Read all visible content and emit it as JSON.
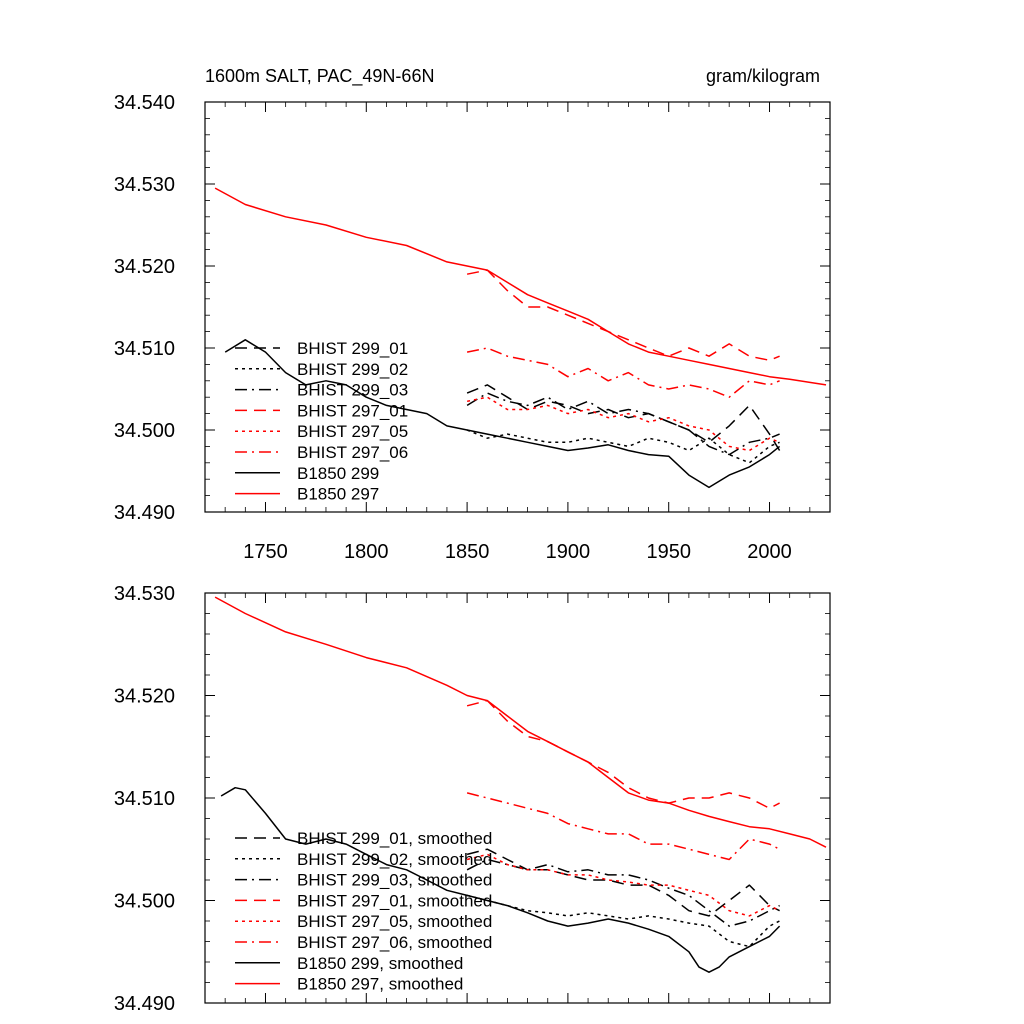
{
  "chart_data": [
    {
      "type": "line",
      "title_left": "1600m SALT, PAC_49N-66N",
      "title_right": "gram/kilogram",
      "xlim": [
        1720,
        2030
      ],
      "ylim": [
        34.49,
        34.54
      ],
      "y_ticks": [
        "34.490",
        "34.500",
        "34.510",
        "34.520",
        "34.530",
        "34.540"
      ],
      "x_ticks": [
        "1750",
        "1800",
        "1850",
        "1900",
        "1950",
        "2000"
      ],
      "grid": false,
      "legend_position": "lower-left",
      "series": [
        {
          "name": "BHIST 299_01",
          "color": "#000000",
          "dash": "dash",
          "x": [
            1850,
            1860,
            1870,
            1880,
            1890,
            1900,
            1910,
            1920,
            1930,
            1940,
            1950,
            1960,
            1970,
            1980,
            1990,
            2000,
            2005
          ],
          "y": [
            34.5045,
            34.5055,
            34.504,
            34.5025,
            34.5035,
            34.503,
            34.502,
            34.5025,
            34.5015,
            34.502,
            34.501,
            34.5,
            34.4985,
            34.5005,
            34.503,
            34.4995,
            34.4975
          ]
        },
        {
          "name": "BHIST 299_02",
          "color": "#000000",
          "dash": "dot",
          "x": [
            1850,
            1860,
            1870,
            1880,
            1890,
            1900,
            1910,
            1920,
            1930,
            1940,
            1950,
            1960,
            1970,
            1980,
            1990,
            2000,
            2005
          ],
          "y": [
            34.5,
            34.499,
            34.4995,
            34.499,
            34.4985,
            34.4985,
            34.499,
            34.4985,
            34.498,
            34.499,
            34.4985,
            34.4975,
            34.499,
            34.497,
            34.496,
            34.498,
            34.4985
          ]
        },
        {
          "name": "BHIST 299_03",
          "color": "#000000",
          "dash": "dashdot",
          "x": [
            1850,
            1860,
            1870,
            1880,
            1890,
            1900,
            1910,
            1920,
            1930,
            1940,
            1950,
            1960,
            1970,
            1980,
            1990,
            2000,
            2005
          ],
          "y": [
            34.503,
            34.5045,
            34.5035,
            34.503,
            34.504,
            34.5025,
            34.5035,
            34.502,
            34.5025,
            34.502,
            34.501,
            34.5,
            34.498,
            34.497,
            34.4985,
            34.499,
            34.4995
          ]
        },
        {
          "name": "BHIST 297_01",
          "color": "#ff0000",
          "dash": "dash",
          "x": [
            1850,
            1860,
            1870,
            1880,
            1890,
            1900,
            1910,
            1920,
            1930,
            1940,
            1950,
            1960,
            1970,
            1980,
            1990,
            2000,
            2005
          ],
          "y": [
            34.519,
            34.5195,
            34.517,
            34.515,
            34.515,
            34.514,
            34.513,
            34.512,
            34.511,
            34.51,
            34.509,
            34.51,
            34.509,
            34.5105,
            34.509,
            34.5085,
            34.509
          ]
        },
        {
          "name": "BHIST 297_05",
          "color": "#ff0000",
          "dash": "dot",
          "x": [
            1850,
            1860,
            1870,
            1880,
            1890,
            1900,
            1910,
            1920,
            1930,
            1940,
            1950,
            1960,
            1970,
            1980,
            1990,
            2000,
            2005
          ],
          "y": [
            34.5035,
            34.504,
            34.5025,
            34.5025,
            34.503,
            34.502,
            34.5025,
            34.5015,
            34.502,
            34.501,
            34.5015,
            34.5005,
            34.5,
            34.498,
            34.4975,
            34.499,
            34.4985
          ]
        },
        {
          "name": "BHIST 297_06",
          "color": "#ff0000",
          "dash": "dashdot",
          "x": [
            1850,
            1860,
            1870,
            1880,
            1890,
            1900,
            1910,
            1920,
            1930,
            1940,
            1950,
            1960,
            1970,
            1980,
            1990,
            2000,
            2005
          ],
          "y": [
            34.5095,
            34.51,
            34.509,
            34.5085,
            34.508,
            34.5065,
            34.5075,
            34.506,
            34.507,
            34.5055,
            34.505,
            34.5055,
            34.505,
            34.504,
            34.506,
            34.5055,
            34.506
          ]
        },
        {
          "name": "B1850 299",
          "color": "#000000",
          "dash": "solid",
          "x": [
            1730,
            1740,
            1750,
            1760,
            1770,
            1780,
            1790,
            1800,
            1810,
            1820,
            1830,
            1840,
            1850,
            1860,
            1870,
            1880,
            1890,
            1900,
            1910,
            1920,
            1930,
            1940,
            1950,
            1960,
            1970,
            1980,
            1990,
            2000,
            2005
          ],
          "y": [
            34.5095,
            34.511,
            34.5095,
            34.507,
            34.5055,
            34.506,
            34.5055,
            34.504,
            34.503,
            34.5025,
            34.502,
            34.5005,
            34.5,
            34.4995,
            34.499,
            34.4985,
            34.498,
            34.4975,
            34.4978,
            34.4982,
            34.4975,
            34.497,
            34.4968,
            34.4945,
            34.493,
            34.4945,
            34.4955,
            34.497,
            34.498
          ]
        },
        {
          "name": "B1850 297",
          "color": "#ff0000",
          "dash": "solid",
          "x": [
            1725,
            1740,
            1760,
            1780,
            1800,
            1820,
            1840,
            1850,
            1860,
            1870,
            1880,
            1890,
            1900,
            1910,
            1920,
            1930,
            1940,
            1950,
            1960,
            1970,
            1980,
            1990,
            2000,
            2010,
            2020,
            2028
          ],
          "y": [
            34.5295,
            34.5275,
            34.526,
            34.525,
            34.5235,
            34.5225,
            34.5205,
            34.52,
            34.5195,
            34.518,
            34.5165,
            34.5155,
            34.5145,
            34.5135,
            34.512,
            34.5105,
            34.5095,
            34.509,
            34.5085,
            34.508,
            34.5075,
            34.507,
            34.5065,
            34.5062,
            34.5058,
            34.5055
          ]
        }
      ]
    },
    {
      "type": "line",
      "xlim": [
        1720,
        2030
      ],
      "ylim": [
        34.49,
        34.53
      ],
      "y_ticks": [
        "34.490",
        "34.500",
        "34.510",
        "34.520",
        "34.530"
      ],
      "grid": false,
      "legend_position": "lower-left",
      "series": [
        {
          "name": "BHIST 299_01, smoothed",
          "color": "#000000",
          "dash": "dash",
          "x": [
            1850,
            1860,
            1870,
            1880,
            1890,
            1900,
            1910,
            1920,
            1930,
            1940,
            1950,
            1960,
            1970,
            1980,
            1990,
            2000,
            2005
          ],
          "y": [
            34.5045,
            34.505,
            34.504,
            34.503,
            34.503,
            34.5025,
            34.502,
            34.502,
            34.5015,
            34.5015,
            34.5005,
            34.499,
            34.4985,
            34.5,
            34.5015,
            34.4995,
            34.499
          ]
        },
        {
          "name": "BHIST 299_02, smoothed",
          "color": "#000000",
          "dash": "dot",
          "x": [
            1850,
            1860,
            1870,
            1880,
            1890,
            1900,
            1910,
            1920,
            1930,
            1940,
            1950,
            1960,
            1970,
            1980,
            1990,
            2000,
            2005
          ],
          "y": [
            34.5005,
            34.5,
            34.4995,
            34.499,
            34.4988,
            34.4985,
            34.4988,
            34.4985,
            34.4982,
            34.4985,
            34.4982,
            34.4978,
            34.4975,
            34.496,
            34.4955,
            34.4975,
            34.498
          ]
        },
        {
          "name": "BHIST 299_03, smoothed",
          "color": "#000000",
          "dash": "dashdot",
          "x": [
            1850,
            1860,
            1870,
            1880,
            1890,
            1900,
            1910,
            1920,
            1930,
            1940,
            1950,
            1960,
            1970,
            1980,
            1990,
            2000,
            2005
          ],
          "y": [
            34.503,
            34.504,
            34.5035,
            34.503,
            34.5035,
            34.5028,
            34.503,
            34.5025,
            34.5025,
            34.502,
            34.5012,
            34.5005,
            34.499,
            34.4975,
            34.498,
            34.499,
            34.4995
          ]
        },
        {
          "name": "BHIST 297_01, smoothed",
          "color": "#ff0000",
          "dash": "dash",
          "x": [
            1850,
            1860,
            1870,
            1880,
            1890,
            1900,
            1910,
            1920,
            1930,
            1940,
            1950,
            1960,
            1970,
            1980,
            1990,
            2000,
            2005
          ],
          "y": [
            34.519,
            34.5195,
            34.5175,
            34.516,
            34.5155,
            34.5145,
            34.5135,
            34.5125,
            34.511,
            34.51,
            34.5095,
            34.51,
            34.51,
            34.5105,
            34.51,
            34.509,
            34.5095
          ]
        },
        {
          "name": "BHIST 297_05, smoothed",
          "color": "#ff0000",
          "dash": "dot",
          "x": [
            1850,
            1860,
            1870,
            1880,
            1890,
            1900,
            1910,
            1920,
            1930,
            1940,
            1950,
            1960,
            1970,
            1980,
            1990,
            2000,
            2005
          ],
          "y": [
            34.504,
            34.5045,
            34.5035,
            34.503,
            34.503,
            34.5025,
            34.5025,
            34.502,
            34.5018,
            34.5015,
            34.5015,
            34.501,
            34.5005,
            34.499,
            34.4985,
            34.4995,
            34.499
          ]
        },
        {
          "name": "BHIST 297_06, smoothed",
          "color": "#ff0000",
          "dash": "dashdot",
          "x": [
            1850,
            1860,
            1870,
            1880,
            1890,
            1900,
            1910,
            1920,
            1930,
            1940,
            1950,
            1960,
            1970,
            1980,
            1990,
            2000,
            2005
          ],
          "y": [
            34.5105,
            34.51,
            34.5095,
            34.509,
            34.5085,
            34.5075,
            34.507,
            34.5065,
            34.5065,
            34.5055,
            34.5055,
            34.505,
            34.5045,
            34.504,
            34.506,
            34.5055,
            34.505
          ]
        },
        {
          "name": "B1850 299, smoothed",
          "color": "#000000",
          "dash": "solid",
          "x": [
            1728,
            1735,
            1740,
            1750,
            1760,
            1770,
            1780,
            1790,
            1800,
            1810,
            1820,
            1830,
            1840,
            1850,
            1860,
            1870,
            1880,
            1890,
            1900,
            1910,
            1920,
            1930,
            1940,
            1950,
            1960,
            1965,
            1970,
            1975,
            1980,
            1990,
            2000,
            2005
          ],
          "y": [
            34.5102,
            34.511,
            34.5108,
            34.5085,
            34.506,
            34.5055,
            34.506,
            34.5055,
            34.5045,
            34.5035,
            34.503,
            34.502,
            34.501,
            34.5005,
            34.5,
            34.4995,
            34.4988,
            34.498,
            34.4975,
            34.4978,
            34.4982,
            34.4978,
            34.4972,
            34.4965,
            34.495,
            34.4935,
            34.493,
            34.4935,
            34.4945,
            34.4955,
            34.4965,
            34.4975
          ]
        },
        {
          "name": "B1850 297, smoothed",
          "color": "#ff0000",
          "dash": "solid",
          "x": [
            1725,
            1740,
            1760,
            1780,
            1800,
            1820,
            1840,
            1850,
            1860,
            1870,
            1880,
            1890,
            1900,
            1910,
            1920,
            1930,
            1940,
            1950,
            1960,
            1970,
            1980,
            1990,
            2000,
            2010,
            2020,
            2028
          ],
          "y": [
            34.5296,
            34.528,
            34.5262,
            34.525,
            34.5237,
            34.5227,
            34.521,
            34.52,
            34.5195,
            34.518,
            34.5165,
            34.5155,
            34.5145,
            34.5135,
            34.512,
            34.5105,
            34.5098,
            34.5095,
            34.5088,
            34.5082,
            34.5077,
            34.5072,
            34.507,
            34.5065,
            34.506,
            34.5052
          ]
        }
      ]
    }
  ]
}
